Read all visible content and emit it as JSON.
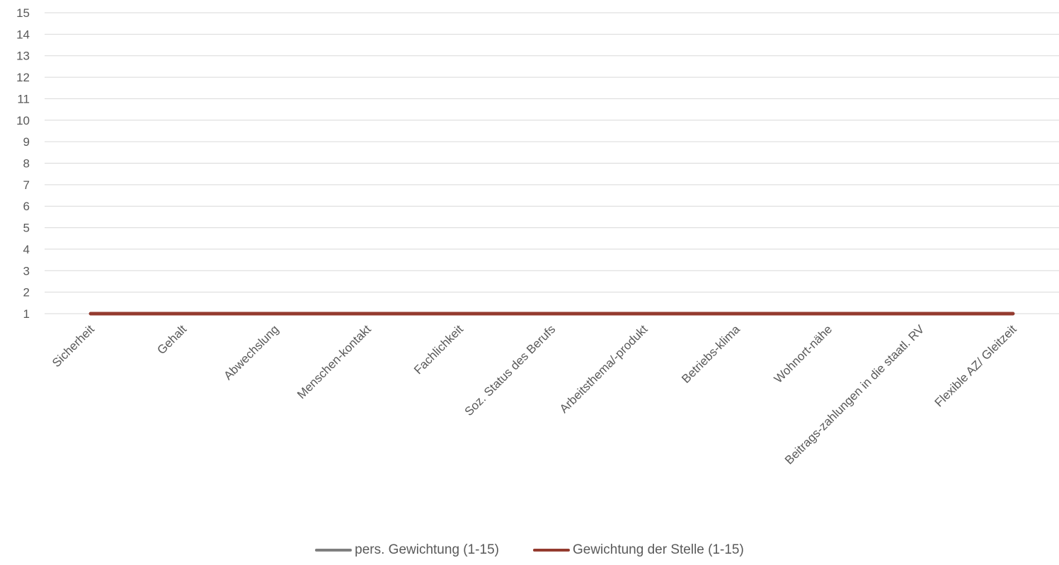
{
  "chart_data": {
    "type": "line",
    "categories": [
      "Sicherheit",
      "Gehalt",
      "Abwechslung",
      "Menschen-kontakt",
      "Fachlichkeit",
      "Soz. Status des Berufs",
      "Arbeitsthema/-produkt",
      "Betriebs-klima",
      "Wohnort-nähe",
      "Beitrags-zahlungen in die staatl. RV",
      "Flexible AZ/ Gleitzeit"
    ],
    "series": [
      {
        "name": "pers. Gewichtung (1-15)",
        "color": "#7f7f7f",
        "values": [
          1,
          1,
          1,
          1,
          1,
          1,
          1,
          1,
          1,
          1,
          1
        ]
      },
      {
        "name": "Gewichtung der Stelle (1-15)",
        "color": "#943b2f",
        "values": [
          1,
          1,
          1,
          1,
          1,
          1,
          1,
          1,
          1,
          1,
          1
        ]
      }
    ],
    "yticks": [
      1,
      2,
      3,
      4,
      5,
      6,
      7,
      8,
      9,
      10,
      11,
      12,
      13,
      14,
      15
    ],
    "ylim": [
      1,
      15
    ],
    "grid": true,
    "gridColor": "#d9d9d9",
    "legend": "bottom"
  }
}
